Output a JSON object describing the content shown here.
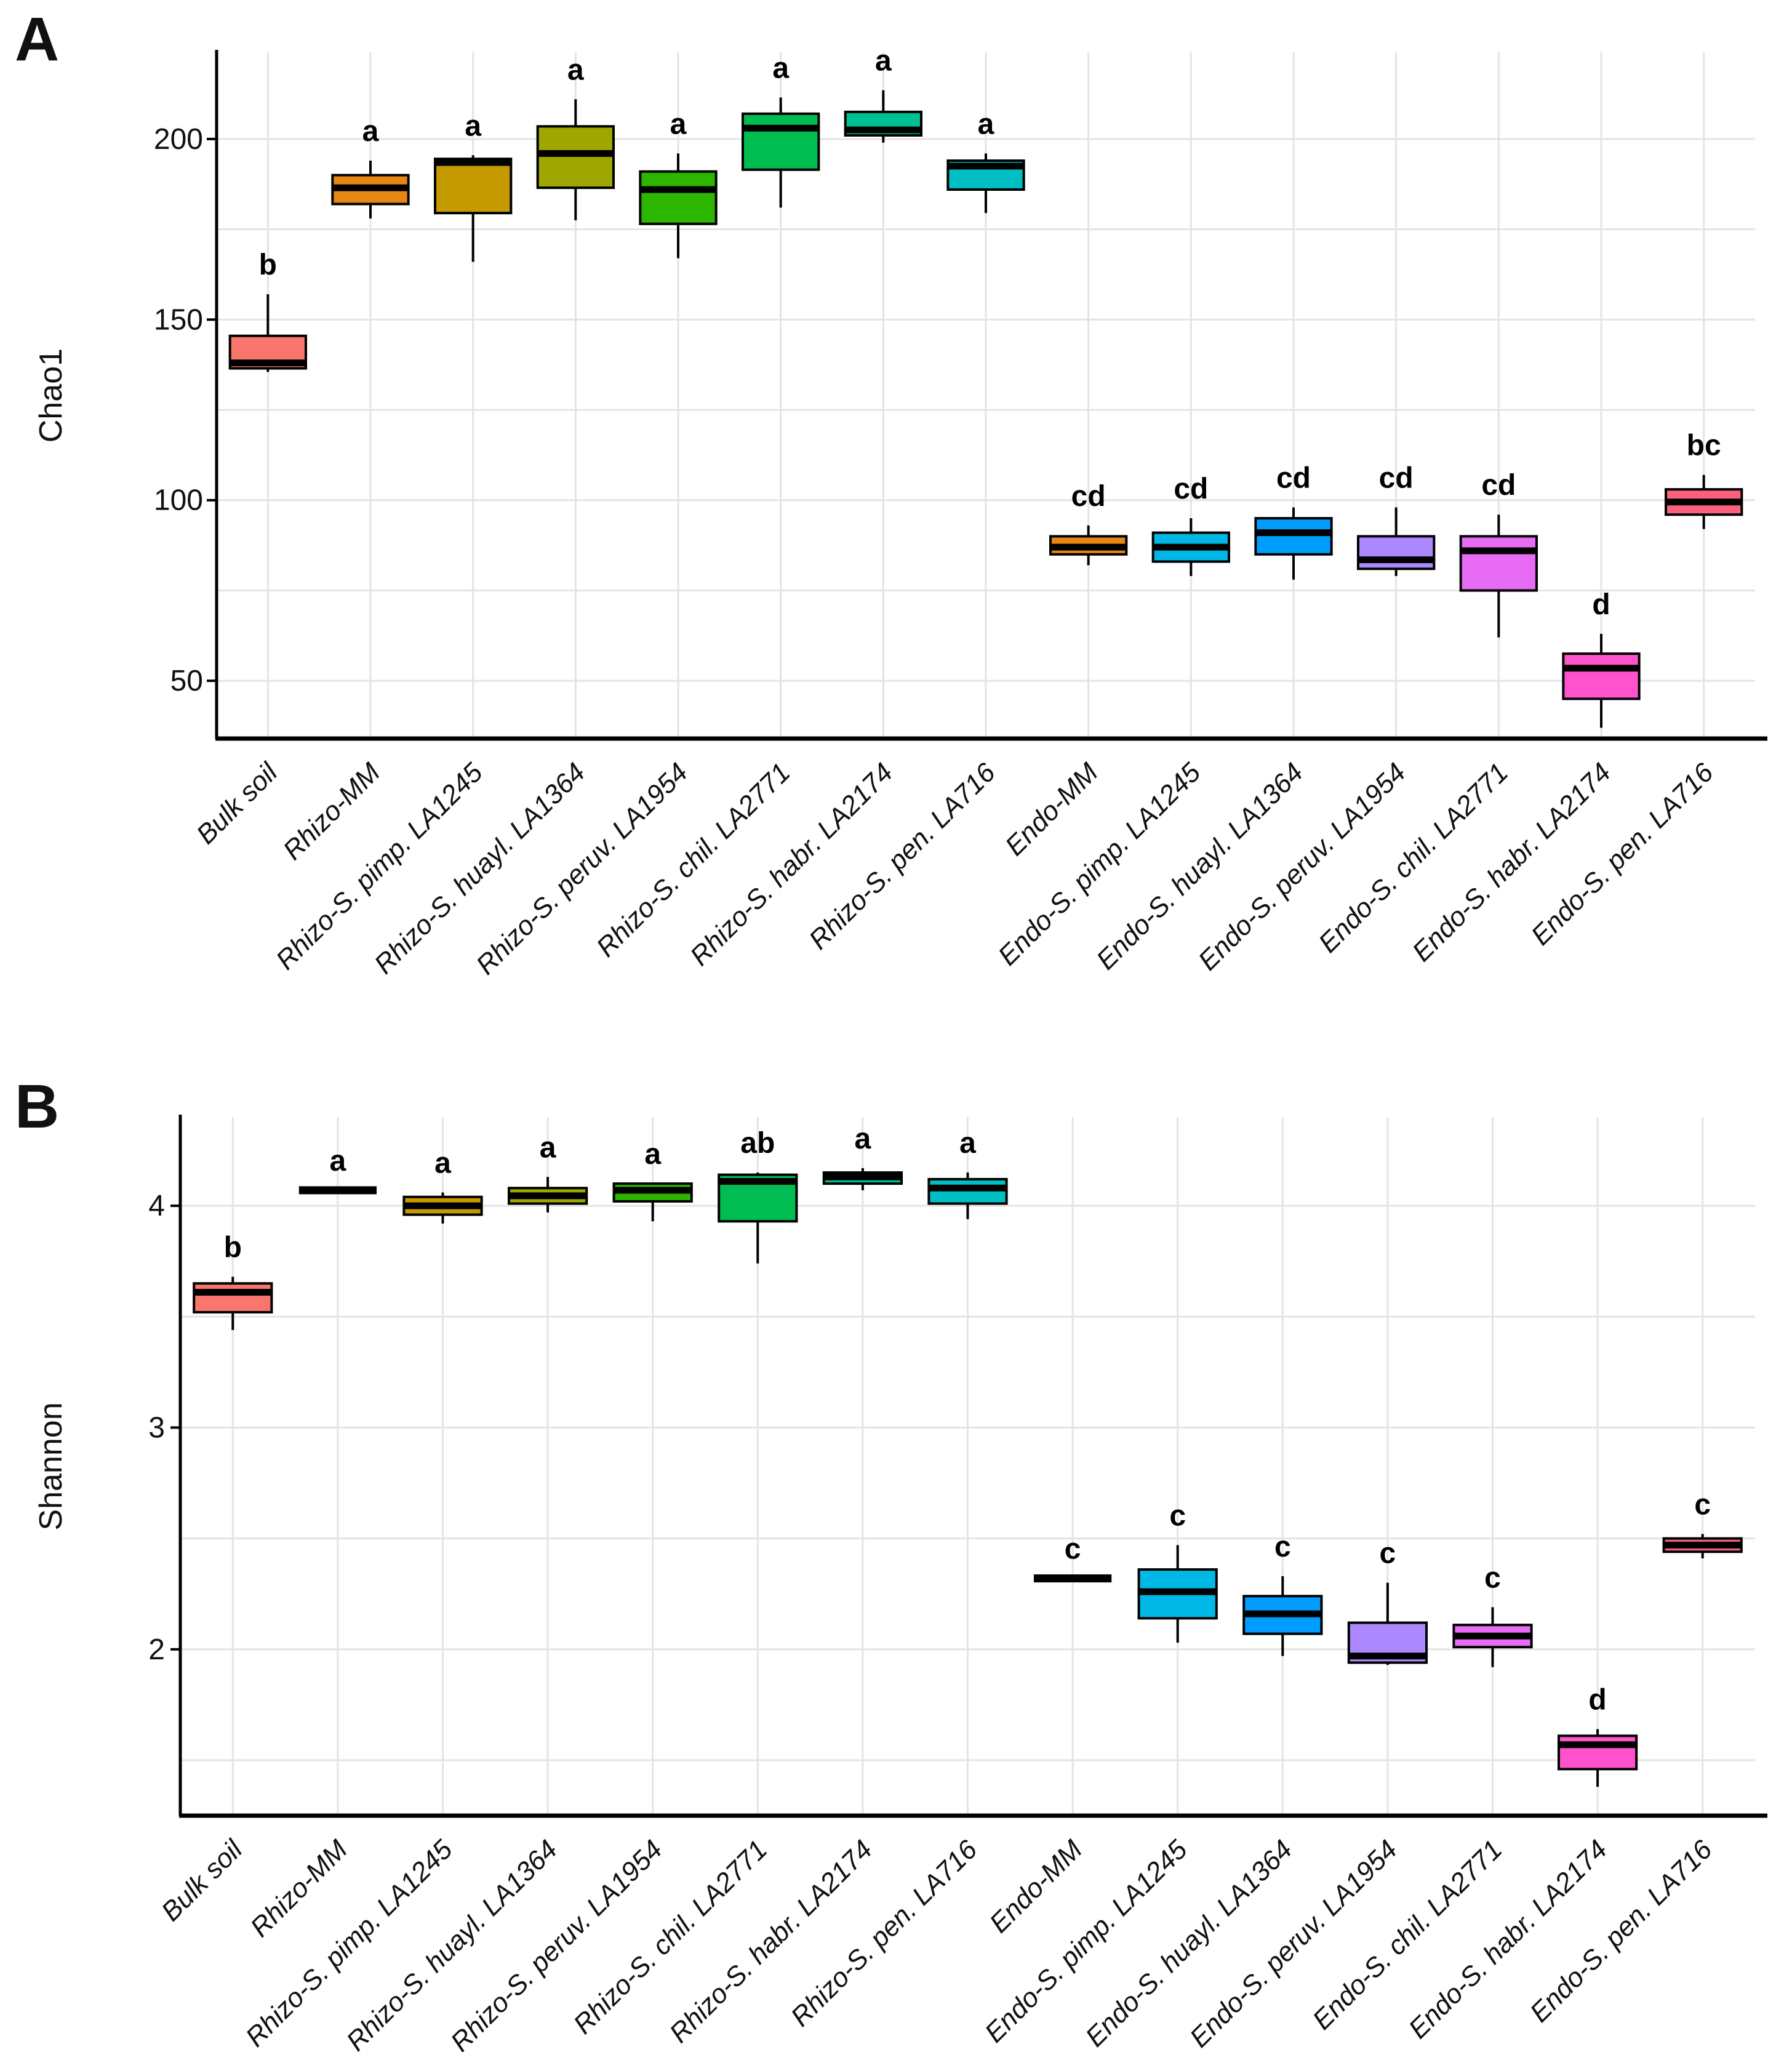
{
  "figure": {
    "panel_a_label": "A",
    "panel_b_label": "B",
    "background_color": "#ffffff",
    "gridline_color": "#e4e4e4",
    "axis_color": "#000000"
  },
  "chart_data": [
    {
      "type": "boxplot",
      "panel": "A",
      "ylabel": "Chao1",
      "yticks": [
        50,
        100,
        150,
        200
      ],
      "minor_gridlines": [
        75,
        125,
        175
      ],
      "ylim": [
        34,
        224
      ],
      "legend_position": "none",
      "grid": "on",
      "categories": [
        "Bulk soil",
        "Rhizo-MM",
        "Rhizo-S. pimp. LA1245",
        "Rhizo-S. huayl. LA1364",
        "Rhizo-S. peruv. LA1954",
        "Rhizo-S. chil. LA2771",
        "Rhizo-S. habr. LA2174",
        "Rhizo-S. pen. LA716",
        "Endo-MM",
        "Endo-S. pimp. LA1245",
        "Endo-S. huayl. LA1364",
        "Endo-S. peruv. LA1954",
        "Endo-S. chil. LA2771",
        "Endo-S. habr. LA2174",
        "Endo-S. pen. LA716"
      ],
      "significance_letters": [
        "b",
        "a",
        "a",
        "a",
        "a",
        "a",
        "a",
        "a",
        "cd",
        "cd",
        "cd",
        "cd",
        "cd",
        "d",
        "bc"
      ],
      "colors": [
        "#F8766D",
        "#E68613",
        "#C49A00",
        "#9DA700",
        "#2CB600",
        "#00BC51",
        "#00C094",
        "#00BFC4",
        "#E68613",
        "#00B8E5",
        "#009DFF",
        "#AC88FF",
        "#E76BF3",
        "#FF52CC",
        "#FB617F"
      ],
      "boxes": [
        {
          "lo": 135.5,
          "q1": 136.5,
          "med": 138,
          "q3": 145.5,
          "hi": 157,
          "flat": false
        },
        {
          "lo": 178,
          "q1": 182,
          "med": 186.5,
          "q3": 190,
          "hi": 194,
          "flat": false
        },
        {
          "lo": 166,
          "q1": 179.5,
          "med": 193.5,
          "q3": 194.5,
          "hi": 195.5,
          "flat": false
        },
        {
          "lo": 177.5,
          "q1": 186.5,
          "med": 196,
          "q3": 203.5,
          "hi": 211,
          "flat": false
        },
        {
          "lo": 167,
          "q1": 176.5,
          "med": 186,
          "q3": 191,
          "hi": 196,
          "flat": false
        },
        {
          "lo": 181,
          "q1": 191.5,
          "med": 203,
          "q3": 207,
          "hi": 211.5,
          "flat": false
        },
        {
          "lo": 199,
          "q1": 201,
          "med": 202.5,
          "q3": 207.5,
          "hi": 213.5,
          "flat": false
        },
        {
          "lo": 179.5,
          "q1": 186,
          "med": 192.5,
          "q3": 194,
          "hi": 196,
          "flat": false
        },
        {
          "lo": 82,
          "q1": 85,
          "med": 87,
          "q3": 90,
          "hi": 93,
          "flat": false
        },
        {
          "lo": 79,
          "q1": 83,
          "med": 87,
          "q3": 91,
          "hi": 95,
          "flat": false
        },
        {
          "lo": 78,
          "q1": 85,
          "med": 91,
          "q3": 95,
          "hi": 98,
          "flat": false
        },
        {
          "lo": 79,
          "q1": 81,
          "med": 83.5,
          "q3": 90,
          "hi": 98,
          "flat": false
        },
        {
          "lo": 62,
          "q1": 75,
          "med": 86,
          "q3": 90,
          "hi": 96,
          "flat": false
        },
        {
          "lo": 37,
          "q1": 45,
          "med": 53.5,
          "q3": 57.5,
          "hi": 63,
          "flat": false
        },
        {
          "lo": 92,
          "q1": 96,
          "med": 99.5,
          "q3": 103,
          "hi": 107,
          "flat": false
        }
      ]
    },
    {
      "type": "boxplot",
      "panel": "B",
      "ylabel": "Shannon",
      "yticks": [
        2,
        3,
        4
      ],
      "minor_gridlines": [
        1.5,
        2.5,
        3.5
      ],
      "ylim": [
        1.25,
        4.4
      ],
      "legend_position": "none",
      "grid": "on",
      "categories": [
        "Bulk soil",
        "Rhizo-MM",
        "Rhizo-S. pimp. LA1245",
        "Rhizo-S. huayl. LA1364",
        "Rhizo-S. peruv. LA1954",
        "Rhizo-S. chil. LA2771",
        "Rhizo-S. habr. LA2174",
        "Rhizo-S. pen. LA716",
        "Endo-MM",
        "Endo-S. pimp. LA1245",
        "Endo-S. huayl. LA1364",
        "Endo-S. peruv. LA1954",
        "Endo-S. chil. LA2771",
        "Endo-S. habr. LA2174",
        "Endo-S. pen. LA716"
      ],
      "significance_letters": [
        "b",
        "a",
        "a",
        "a",
        "a",
        "ab",
        "a",
        "a",
        "c",
        "c",
        "c",
        "c",
        "c",
        "d",
        "c"
      ],
      "colors": [
        "#F8766D",
        "#E68613",
        "#C49A00",
        "#9DA700",
        "#2CB600",
        "#00BC51",
        "#00C094",
        "#00BFC4",
        "#E68613",
        "#00B8E5",
        "#009DFF",
        "#AC88FF",
        "#E76BF3",
        "#FF52CC",
        "#FB617F"
      ],
      "boxes": [
        {
          "lo": 3.44,
          "q1": 3.52,
          "med": 3.61,
          "q3": 3.65,
          "hi": 3.68,
          "flat": false
        },
        {
          "lo": 4.07,
          "q1": 4.07,
          "med": 4.07,
          "q3": 4.07,
          "hi": 4.07,
          "flat": true
        },
        {
          "lo": 3.92,
          "q1": 3.96,
          "med": 4.0,
          "q3": 4.04,
          "hi": 4.06,
          "flat": false
        },
        {
          "lo": 3.97,
          "q1": 4.01,
          "med": 4.045,
          "q3": 4.08,
          "hi": 4.13,
          "flat": false
        },
        {
          "lo": 3.93,
          "q1": 4.02,
          "med": 4.07,
          "q3": 4.1,
          "hi": 4.1,
          "flat": false
        },
        {
          "lo": 3.74,
          "q1": 3.93,
          "med": 4.11,
          "q3": 4.14,
          "hi": 4.15,
          "flat": false
        },
        {
          "lo": 4.07,
          "q1": 4.1,
          "med": 4.13,
          "q3": 4.15,
          "hi": 4.17,
          "flat": false
        },
        {
          "lo": 3.94,
          "q1": 4.01,
          "med": 4.08,
          "q3": 4.12,
          "hi": 4.15,
          "flat": false
        },
        {
          "lo": 2.32,
          "q1": 2.32,
          "med": 2.32,
          "q3": 2.32,
          "hi": 2.32,
          "flat": true
        },
        {
          "lo": 2.03,
          "q1": 2.14,
          "med": 2.26,
          "q3": 2.36,
          "hi": 2.47,
          "flat": false
        },
        {
          "lo": 1.97,
          "q1": 2.07,
          "med": 2.16,
          "q3": 2.24,
          "hi": 2.33,
          "flat": false
        },
        {
          "lo": 1.93,
          "q1": 1.94,
          "med": 1.97,
          "q3": 2.12,
          "hi": 2.3,
          "flat": false
        },
        {
          "lo": 1.92,
          "q1": 2.01,
          "med": 2.06,
          "q3": 2.11,
          "hi": 2.19,
          "flat": false
        },
        {
          "lo": 1.38,
          "q1": 1.46,
          "med": 1.57,
          "q3": 1.61,
          "hi": 1.64,
          "flat": false
        },
        {
          "lo": 2.41,
          "q1": 2.44,
          "med": 2.47,
          "q3": 2.5,
          "hi": 2.52,
          "flat": false
        }
      ]
    }
  ]
}
